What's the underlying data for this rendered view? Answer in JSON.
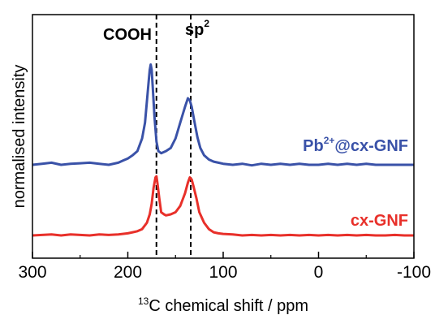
{
  "chart_data": {
    "type": "line",
    "xlabel_sup": "13",
    "xlabel": "C chemical shift / ppm",
    "ylabel": "normalised intensity",
    "xlim": [
      300,
      -100
    ],
    "x_ticks": [
      "300",
      "200",
      "100",
      "0",
      "-100"
    ],
    "x_tick_values": [
      300,
      200,
      100,
      0,
      -100
    ],
    "reference_lines": [
      {
        "x": 170,
        "label": "COOH",
        "label_sup": ""
      },
      {
        "x": 134,
        "label": "sp",
        "label_sup": "2"
      }
    ],
    "series": [
      {
        "name": "Pb",
        "name_sup": "2+",
        "name_suffix": "@cx-GNF",
        "color": "#3a52a8",
        "x": [
          300,
          290,
          280,
          270,
          260,
          250,
          240,
          230,
          220,
          210,
          205,
          200,
          195,
          190,
          185,
          182,
          180,
          178,
          177,
          176,
          175,
          174,
          172,
          170,
          168,
          165,
          160,
          155,
          150,
          145,
          140,
          137,
          135,
          133,
          130,
          127,
          124,
          120,
          115,
          110,
          105,
          100,
          90,
          80,
          70,
          60,
          50,
          40,
          30,
          20,
          10,
          0,
          -10,
          -20,
          -30,
          -40,
          -50,
          -60,
          -70,
          -80,
          -90,
          -100
        ],
        "y": [
          0.0,
          0.01,
          0.02,
          0.0,
          0.01,
          0.015,
          0.02,
          0.01,
          0.0,
          0.02,
          0.04,
          0.06,
          0.09,
          0.13,
          0.25,
          0.4,
          0.6,
          0.8,
          0.9,
          0.95,
          0.9,
          0.75,
          0.45,
          0.22,
          0.13,
          0.11,
          0.13,
          0.16,
          0.25,
          0.4,
          0.55,
          0.63,
          0.61,
          0.55,
          0.4,
          0.26,
          0.16,
          0.09,
          0.05,
          0.03,
          0.02,
          0.01,
          0.0,
          0.01,
          -0.005,
          0.01,
          0.0,
          0.01,
          0.0,
          0.01,
          0.0,
          0.0,
          0.01,
          0.0,
          0.01,
          0.0,
          0.01,
          0.0,
          0.0,
          0.0,
          0.0,
          0.0
        ]
      },
      {
        "name": "cx-GNF",
        "name_sup": "",
        "name_suffix": "",
        "color": "#e8302a",
        "x": [
          300,
          290,
          280,
          270,
          260,
          250,
          240,
          230,
          220,
          210,
          200,
          195,
          190,
          185,
          180,
          177,
          175,
          173,
          171,
          170,
          169,
          167,
          165,
          162,
          160,
          155,
          150,
          145,
          140,
          137,
          135,
          133,
          131,
          128,
          125,
          120,
          115,
          110,
          105,
          100,
          90,
          80,
          70,
          60,
          50,
          40,
          30,
          20,
          10,
          0,
          -10,
          -20,
          -30,
          -40,
          -50,
          -60,
          -70,
          -80,
          -90,
          -100
        ],
        "y": [
          0.0,
          0.005,
          0.01,
          0.0,
          0.01,
          0.005,
          0.0,
          0.01,
          0.005,
          0.01,
          0.02,
          0.03,
          0.04,
          0.06,
          0.12,
          0.2,
          0.3,
          0.45,
          0.55,
          0.56,
          0.5,
          0.35,
          0.22,
          0.2,
          0.19,
          0.2,
          0.22,
          0.28,
          0.4,
          0.5,
          0.55,
          0.53,
          0.46,
          0.35,
          0.22,
          0.12,
          0.06,
          0.03,
          0.02,
          0.015,
          0.01,
          0.0,
          0.005,
          0.0,
          0.005,
          0.0,
          0.005,
          0.0,
          0.005,
          0.0,
          0.005,
          0.0,
          0.005,
          0.0,
          0.005,
          0.0,
          0.0,
          0.005,
          0.0,
          0.0
        ]
      }
    ]
  }
}
